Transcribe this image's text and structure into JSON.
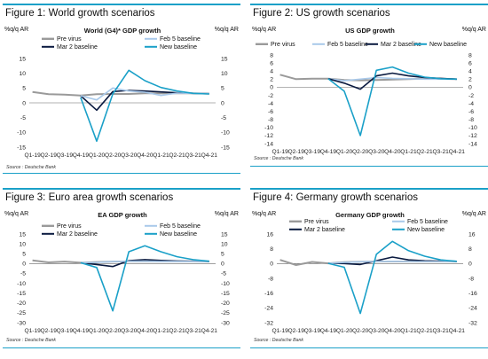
{
  "chart_data": [
    {
      "type": "line",
      "panel_title": "Figure 1: World growth scenarios",
      "title": "World (G4)* GDP growth",
      "ylabel_left": "%q/q AR",
      "ylabel_right": "%q/q AR",
      "ylim": [
        -15,
        15
      ],
      "yticks": [
        -15,
        -10,
        -5,
        0,
        5,
        10,
        15
      ],
      "source": "Source : Deutsche Bank",
      "categories": [
        "Q1-19",
        "Q2-19",
        "Q3-19",
        "Q4-19",
        "Q1-20",
        "Q2-20",
        "Q3-20",
        "Q4-20",
        "Q1-21",
        "Q2-21",
        "Q3-21",
        "Q4-21"
      ],
      "legend_columns": [
        0,
        0,
        1,
        1
      ],
      "series": [
        {
          "name": "Pre virus",
          "color": "#9a9a9a",
          "width": 2,
          "values": [
            3.7,
            2.9,
            2.8,
            2.5,
            2.9,
            3.0,
            3.0,
            3.2,
            3.2,
            3.2,
            3.2,
            3.1
          ]
        },
        {
          "name": "Mar 2 baseline",
          "color": "#0a1a40",
          "width": 1.6,
          "values": [
            null,
            null,
            null,
            2.4,
            -2.5,
            3.8,
            4.2,
            4.0,
            3.7,
            3.4,
            3.2,
            3.1
          ]
        },
        {
          "name": "Feb 5 baseline",
          "color": "#a9c9ea",
          "width": 1.6,
          "values": [
            null,
            null,
            null,
            2.4,
            1.0,
            5.0,
            4.0,
            3.6,
            2.5,
            3.3,
            3.2,
            3.1
          ]
        },
        {
          "name": "New baseline",
          "color": "#1aa0c8",
          "width": 1.6,
          "values": [
            null,
            null,
            null,
            1.8,
            -13.0,
            3.0,
            11.0,
            7.5,
            5.2,
            4.0,
            3.2,
            3.0
          ]
        }
      ]
    },
    {
      "type": "line",
      "panel_title": "Figure 2: US growth scenarios",
      "title": "US GDP growth",
      "ylabel_left": "%q/q AR",
      "ylabel_right": "%q/q AR",
      "ylim": [
        -14,
        8
      ],
      "yticks": [
        -14,
        -12,
        -10,
        -8,
        -6,
        -4,
        -2,
        0,
        2,
        4,
        6,
        8
      ],
      "source": "Source : Deutsche Bank",
      "categories": [
        "Q1-19",
        "Q2-19",
        "Q3-19",
        "Q4-19",
        "Q1-20",
        "Q2-20",
        "Q3-20",
        "Q4-20",
        "Q1-21",
        "Q2-21",
        "Q3-21",
        "Q4-21"
      ],
      "legend_columns": [
        0,
        1,
        2,
        3
      ],
      "series": [
        {
          "name": "Pre virus",
          "color": "#9a9a9a",
          "width": 2,
          "values": [
            3.1,
            2.0,
            2.1,
            2.1,
            1.8,
            1.7,
            1.8,
            1.9,
            2.0,
            2.1,
            2.1,
            2.0
          ]
        },
        {
          "name": "Feb 5 baseline",
          "color": "#a9c9ea",
          "width": 1.6,
          "values": [
            null,
            null,
            null,
            2.1,
            1.6,
            2.0,
            2.4,
            2.2,
            2.1,
            2.0,
            2.0,
            2.0
          ]
        },
        {
          "name": "Mar 2 baseline",
          "color": "#0a1a40",
          "width": 1.6,
          "values": [
            null,
            null,
            null,
            2.1,
            1.0,
            -0.5,
            2.8,
            3.5,
            2.8,
            2.4,
            2.2,
            2.0
          ]
        },
        {
          "name": "New baseline",
          "color": "#1aa0c8",
          "width": 1.6,
          "values": [
            null,
            null,
            null,
            2.1,
            -1.0,
            -12.0,
            4.2,
            5.0,
            3.5,
            2.5,
            2.1,
            2.0
          ]
        }
      ]
    },
    {
      "type": "line",
      "panel_title": "Figure 3: Euro area growth scenarios",
      "title": "EA GDP growth",
      "ylabel_left": "%q/q AR",
      "ylabel_right": "%q/q AR",
      "ylim": [
        -30,
        15
      ],
      "yticks": [
        -30,
        -25,
        -20,
        -15,
        -10,
        -5,
        0,
        5,
        10,
        15
      ],
      "source": "Source : Deutsche Bank",
      "categories": [
        "Q1-19",
        "Q2-19",
        "Q3-19",
        "Q4-19",
        "Q1-20",
        "Q2-20",
        "Q3-20",
        "Q4-20",
        "Q1-21",
        "Q2-21",
        "Q3-21",
        "Q4-21"
      ],
      "legend_columns": [
        0,
        0,
        1,
        1
      ],
      "series": [
        {
          "name": "Pre virus",
          "color": "#9a9a9a",
          "width": 2,
          "values": [
            1.6,
            0.6,
            1.0,
            0.4,
            0.8,
            1.0,
            1.1,
            1.1,
            1.1,
            1.1,
            1.1,
            1.1
          ]
        },
        {
          "name": "Mar 2 baseline",
          "color": "#0a1a40",
          "width": 1.6,
          "values": [
            null,
            null,
            null,
            0.4,
            -0.5,
            -1.5,
            1.5,
            2.0,
            1.6,
            1.3,
            1.2,
            1.1
          ]
        },
        {
          "name": "Feb 5 baseline",
          "color": "#a9c9ea",
          "width": 1.6,
          "values": [
            null,
            null,
            null,
            0.4,
            0.6,
            1.0,
            1.2,
            1.2,
            1.1,
            1.1,
            1.1,
            1.1
          ]
        },
        {
          "name": "New baseline",
          "color": "#1aa0c8",
          "width": 1.6,
          "values": [
            null,
            null,
            null,
            0.4,
            -2.0,
            -24.0,
            6.0,
            9.0,
            6.0,
            3.5,
            2.0,
            1.2
          ]
        }
      ]
    },
    {
      "type": "line",
      "panel_title": "Figure 4: Germany growth scenarios",
      "title": "Germany GDP growth",
      "ylabel_left": "%q/q AR",
      "ylabel_right": "%q/q AR",
      "ylim": [
        -32,
        16
      ],
      "yticks": [
        -32,
        -24,
        -16,
        -8,
        0,
        8,
        16
      ],
      "source": "Source : Deutsche Bank",
      "categories": [
        "Q1-19",
        "Q2-19",
        "Q3-19",
        "Q4-19",
        "Q1-20",
        "Q2-20",
        "Q3-20",
        "Q4-20",
        "Q1-21",
        "Q2-21",
        "Q3-21",
        "Q4-21"
      ],
      "legend_columns": [
        0,
        0,
        1,
        1
      ],
      "series": [
        {
          "name": "Pre virus",
          "color": "#9a9a9a",
          "width": 2,
          "values": [
            2.0,
            -0.8,
            0.9,
            0.1,
            0.8,
            1.0,
            1.1,
            1.1,
            1.1,
            1.1,
            1.1,
            1.1
          ]
        },
        {
          "name": "Mar 2 baseline",
          "color": "#0a1a40",
          "width": 1.6,
          "values": [
            null,
            null,
            null,
            0.1,
            0.0,
            -0.5,
            1.5,
            3.5,
            2.0,
            1.5,
            1.3,
            1.2
          ]
        },
        {
          "name": "Feb 5 baseline",
          "color": "#a9c9ea",
          "width": 1.6,
          "values": [
            null,
            null,
            null,
            0.1,
            0.6,
            1.0,
            1.2,
            1.2,
            1.1,
            1.1,
            1.1,
            1.1
          ]
        },
        {
          "name": "New baseline",
          "color": "#1aa0c8",
          "width": 1.6,
          "values": [
            null,
            null,
            null,
            0.1,
            -2.0,
            -27.0,
            5.0,
            12.0,
            7.0,
            4.0,
            2.0,
            1.2
          ]
        }
      ]
    }
  ]
}
